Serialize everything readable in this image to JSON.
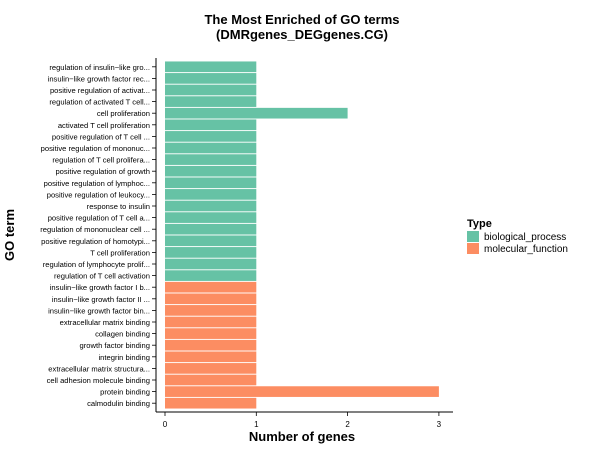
{
  "chart_data": {
    "type": "bar",
    "orientation": "horizontal",
    "title_line1": "The Most Enriched of GO terms",
    "title_line2": "(DMRgenes_DEGgenes.CG)",
    "xlabel": "Number of genes",
    "ylabel": "GO term",
    "xlim": [
      0,
      3.15
    ],
    "xticks": [
      0,
      1,
      2,
      3
    ],
    "grid": false,
    "legend": {
      "title": "Type",
      "placement": "right",
      "entries": [
        {
          "name": "biological_process",
          "color": "#66C2A5"
        },
        {
          "name": "molecular_function",
          "color": "#FC8D62"
        }
      ]
    },
    "categories": [
      "regulation of insulin−like gro...",
      "insulin−like growth factor rec...",
      "positive regulation of activat...",
      "regulation of activated T cell...",
      "cell proliferation",
      "activated T cell proliferation",
      "positive regulation of T cell ...",
      "positive regulation of mononuc...",
      "regulation of T cell prolifera...",
      "positive regulation of growth",
      "positive regulation of lymphoc...",
      "positive regulation of leukocy...",
      "response to insulin",
      "positive regulation of T cell a...",
      "regulation of mononuclear cell ...",
      "positive regulation of homotypi...",
      "T cell proliferation",
      "regulation of lymphocyte prolif...",
      "regulation of T cell activation",
      "insulin−like growth factor I b...",
      "insulin−like growth factor II ...",
      "insulin−like growth factor bin...",
      "extracellular matrix binding",
      "collagen binding",
      "growth factor binding",
      "integrin binding",
      "extracellular matrix structura...",
      "cell adhesion molecule binding",
      "protein binding",
      "calmodulin binding"
    ],
    "values": [
      1,
      1,
      1,
      1,
      2,
      1,
      1,
      1,
      1,
      1,
      1,
      1,
      1,
      1,
      1,
      1,
      1,
      1,
      1,
      1,
      1,
      1,
      1,
      1,
      1,
      1,
      1,
      1,
      3,
      1
    ],
    "types": [
      "biological_process",
      "biological_process",
      "biological_process",
      "biological_process",
      "biological_process",
      "biological_process",
      "biological_process",
      "biological_process",
      "biological_process",
      "biological_process",
      "biological_process",
      "biological_process",
      "biological_process",
      "biological_process",
      "biological_process",
      "biological_process",
      "biological_process",
      "biological_process",
      "biological_process",
      "molecular_function",
      "molecular_function",
      "molecular_function",
      "molecular_function",
      "molecular_function",
      "molecular_function",
      "molecular_function",
      "molecular_function",
      "molecular_function",
      "molecular_function",
      "molecular_function"
    ]
  }
}
